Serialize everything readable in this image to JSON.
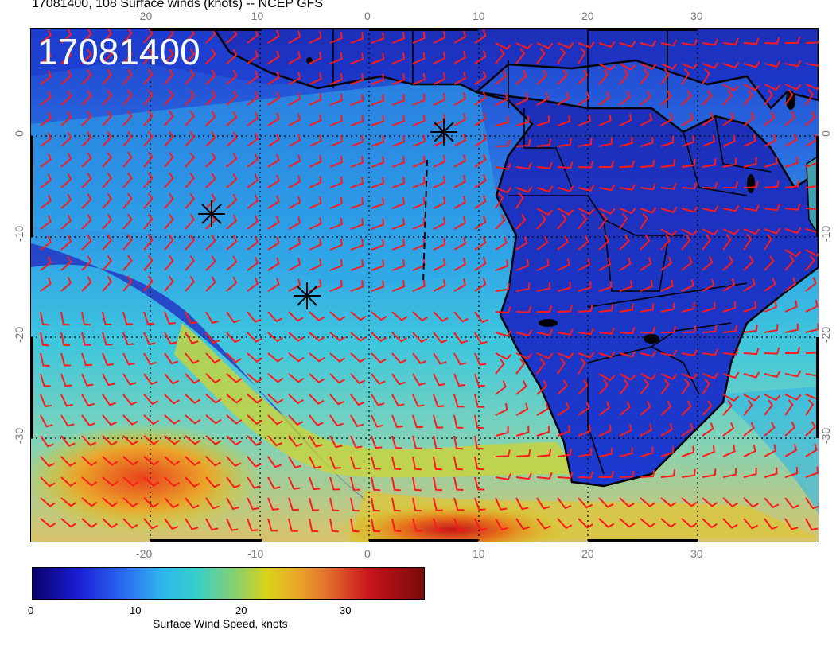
{
  "title": "17081400, 108 Surface winds (knots) -- NCEP GFS",
  "stamp": "17081400",
  "axes": {
    "top_ticks": [
      "-20",
      "-10",
      "0",
      "10",
      "20",
      "30"
    ],
    "bottom_ticks": [
      "-20",
      "-10",
      "0",
      "10",
      "20",
      "30"
    ],
    "left_ticks": [
      "0",
      "-10",
      "-20",
      "-30"
    ],
    "right_ticks": [
      "0",
      "-10",
      "-20",
      "-30"
    ]
  },
  "colorbar": {
    "ticks": [
      "0",
      "10",
      "20",
      "30"
    ],
    "label": "Surface Wind Speed, knots"
  },
  "colors": {
    "barb": "#ff1a1a",
    "coast": "#000000",
    "grid": "#000000"
  },
  "markers": [
    {
      "name": "asterisk-marker-1"
    },
    {
      "name": "asterisk-marker-2"
    },
    {
      "name": "asterisk-marker-3"
    }
  ],
  "icons": [
    "asterisk-icon",
    "wind-barb-icon"
  ]
}
